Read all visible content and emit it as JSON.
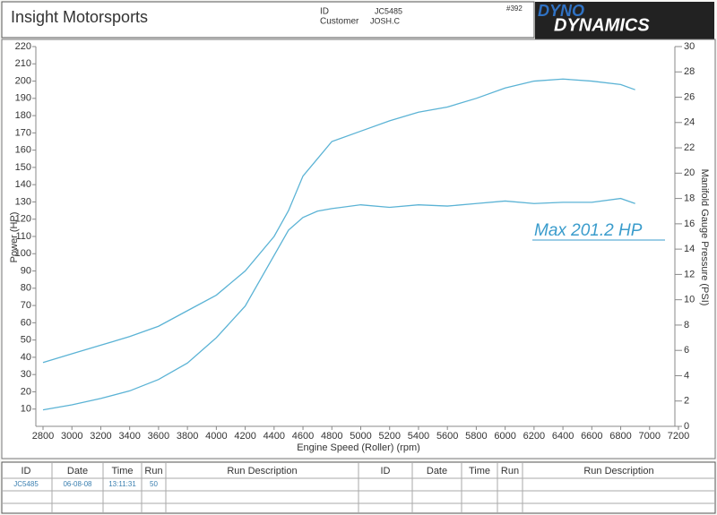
{
  "header": {
    "company": "Insight Motorsports",
    "id_label": "ID",
    "id_value": "JC5485",
    "customer_label": "Customer",
    "customer_value": "JOSH.C",
    "number": "#392",
    "logo_top": "DYNO",
    "logo_bottom": "DYNAMICS"
  },
  "chart_data": {
    "type": "line",
    "xlabel": "Engine Speed (Roller) (rpm)",
    "ylabel": "Power (HP)",
    "y2label": "Manifold Gauge Pressure (PSI)",
    "annotation": "Max 201.2 HP",
    "x": [
      2800,
      3000,
      3200,
      3400,
      3600,
      3800,
      4000,
      4200,
      4400,
      4500,
      4600,
      4700,
      4800,
      5000,
      5200,
      5400,
      5600,
      5800,
      6000,
      6200,
      6400,
      6600,
      6800,
      6900
    ],
    "series": [
      {
        "name": "Power",
        "color": "#5bb3d5",
        "values": [
          37,
          42,
          47,
          52,
          58,
          67,
          76,
          90,
          110,
          125,
          145,
          155,
          165,
          171,
          177,
          182,
          185,
          190,
          196,
          200,
          201.2,
          200,
          198,
          195
        ]
      },
      {
        "name": "Manifold Gauge Pressure",
        "color": "#5bb3d5",
        "axis": "y2",
        "values": [
          1.3,
          1.7,
          2.2,
          2.8,
          3.7,
          5.0,
          7.0,
          9.5,
          13.5,
          15.5,
          16.5,
          17.0,
          17.2,
          17.5,
          17.3,
          17.5,
          17.4,
          17.6,
          17.8,
          17.6,
          17.7,
          17.7,
          18.0,
          17.6
        ]
      }
    ],
    "xlim": [
      2800,
      7200
    ],
    "xticks": [
      2800,
      3000,
      3200,
      3400,
      3600,
      3800,
      4000,
      4200,
      4400,
      4600,
      4800,
      5000,
      5200,
      5400,
      5600,
      5800,
      6000,
      6200,
      6400,
      6600,
      6800,
      7000,
      7200
    ],
    "ylim": [
      0,
      220
    ],
    "yticks": [
      10,
      20,
      30,
      40,
      50,
      60,
      70,
      80,
      90,
      100,
      110,
      120,
      130,
      140,
      150,
      160,
      170,
      180,
      190,
      200,
      210,
      220
    ],
    "y2lim": [
      0,
      30
    ],
    "y2ticks": [
      0,
      2,
      4,
      6,
      8,
      10,
      12,
      14,
      16,
      18,
      20,
      22,
      24,
      26,
      28,
      30
    ]
  },
  "table": {
    "headers": [
      "ID",
      "Date",
      "Time",
      "Run",
      "Run Description",
      "ID",
      "Date",
      "Time",
      "Run",
      "Run Description"
    ],
    "rows": [
      [
        "JC5485",
        "06-08-08",
        "13:11:31",
        "50"
      ]
    ]
  }
}
